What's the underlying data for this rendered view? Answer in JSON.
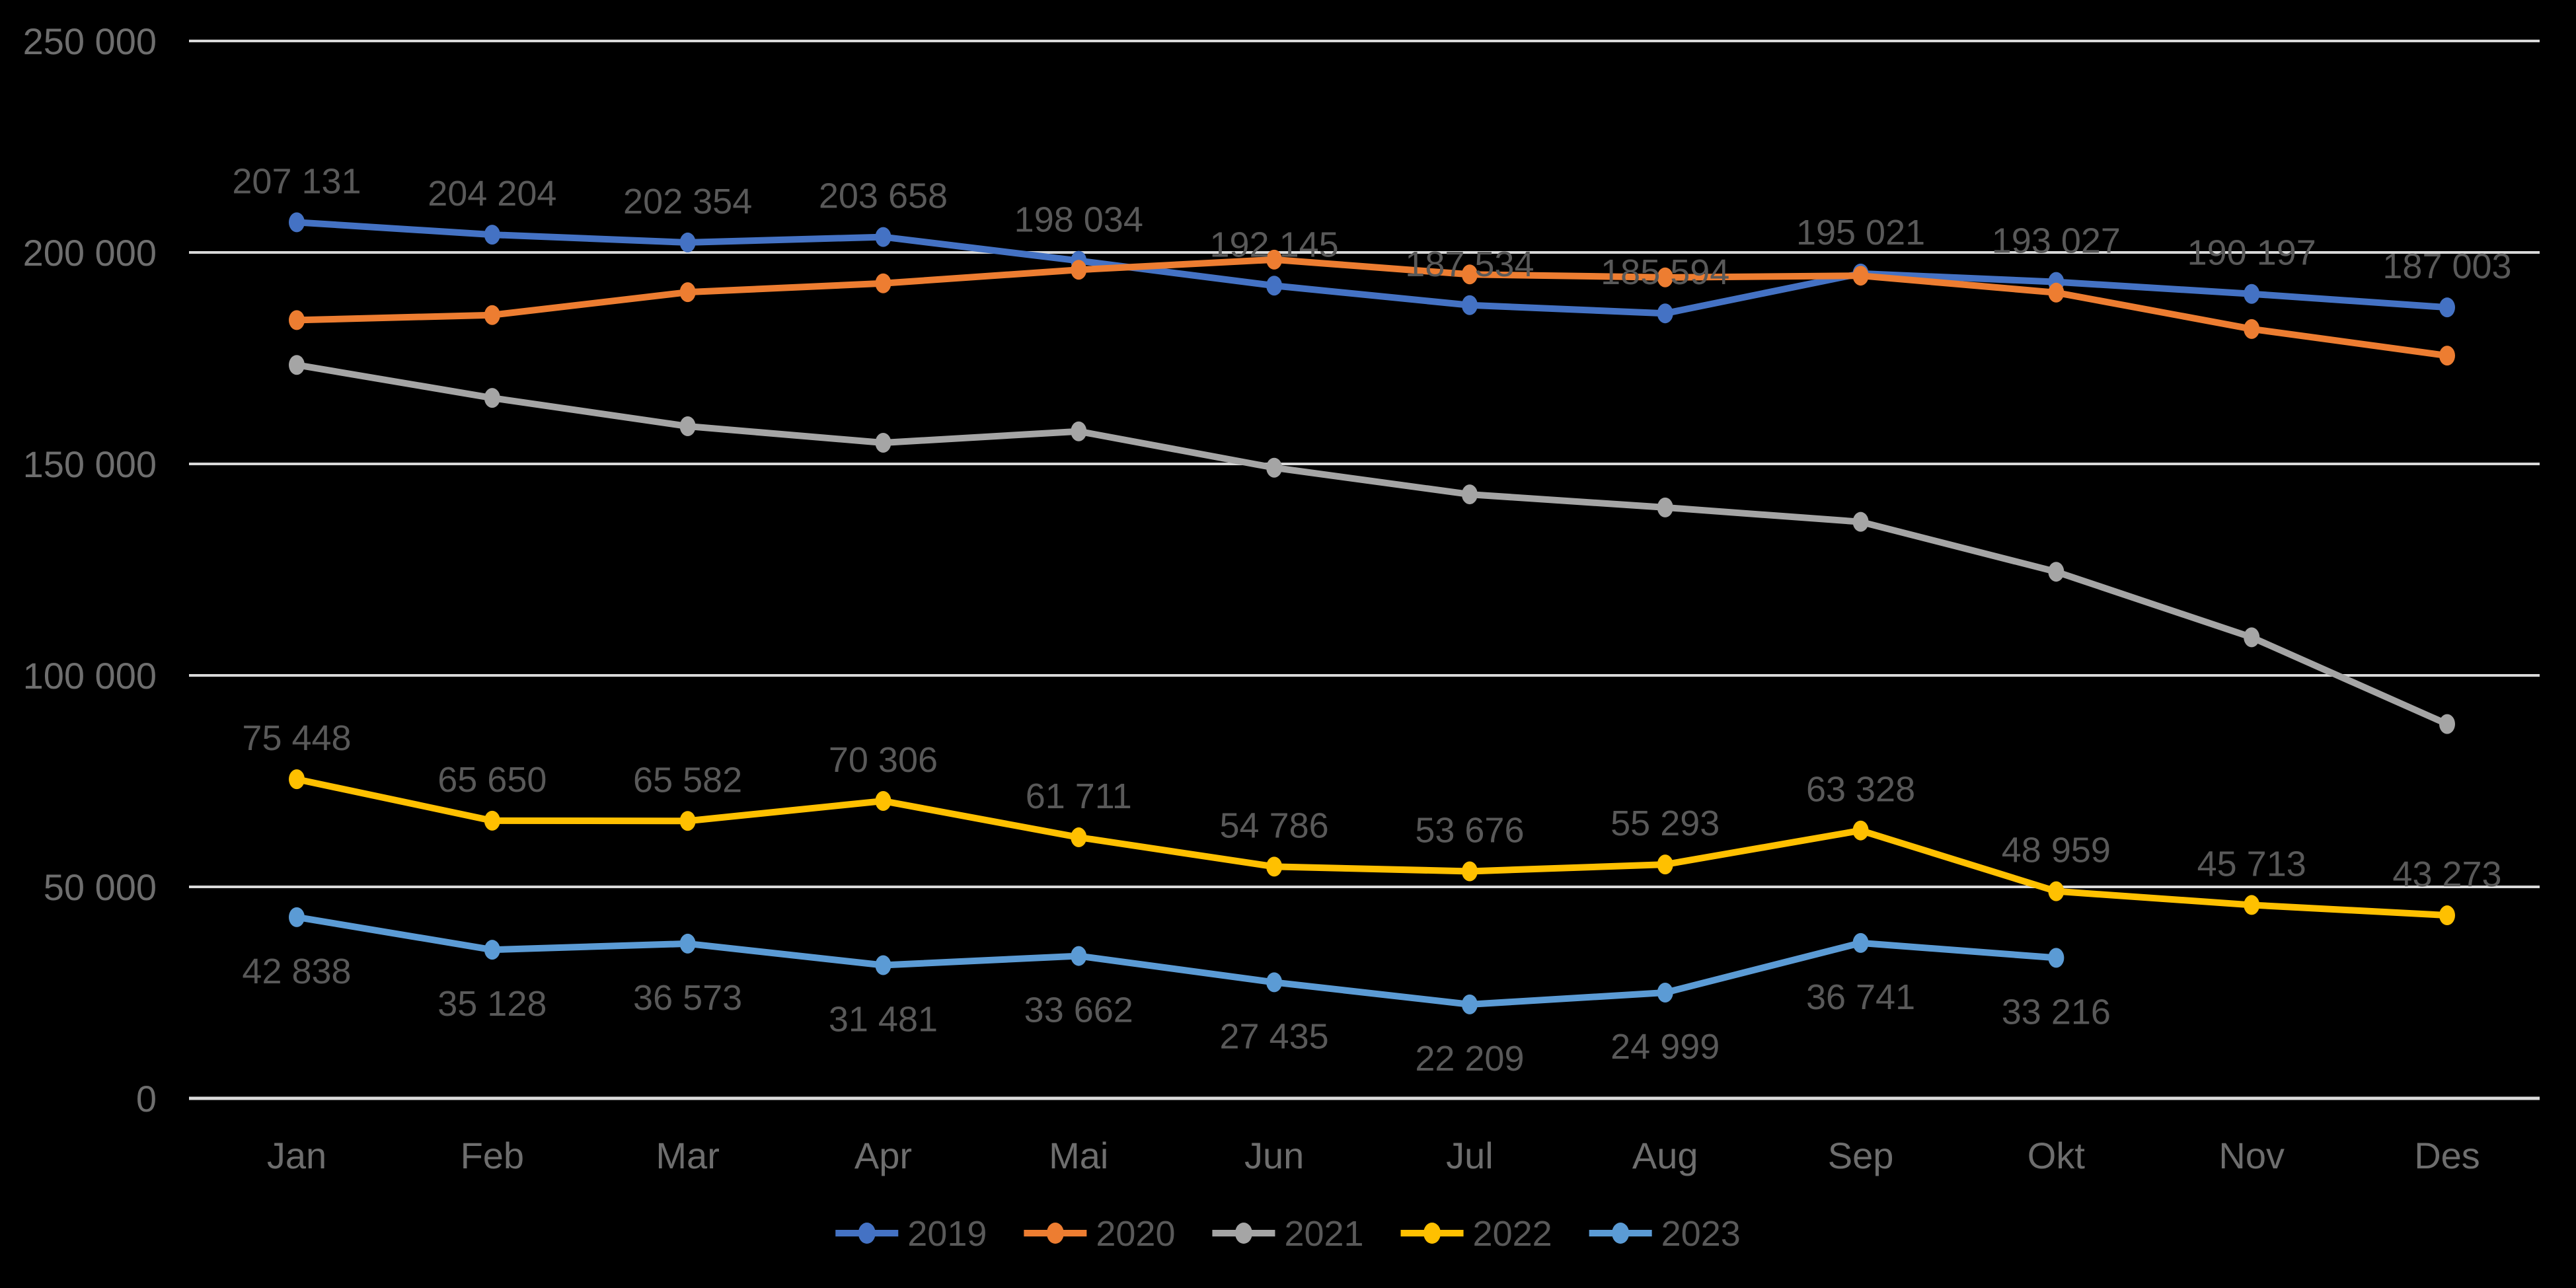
{
  "chart_data": {
    "type": "line",
    "title": "",
    "xlabel": "",
    "ylabel": "",
    "background_color": "#000000",
    "gridline_color": "#D9D9D9",
    "grid": true,
    "axis_label_color": "#6E6E6E",
    "data_label_color": "#595959",
    "legend_text_color": "#595959",
    "legend_position": "bottom",
    "categories": [
      "Jan",
      "Feb",
      "Mar",
      "Apr",
      "Mai",
      "Jun",
      "Jul",
      "Aug",
      "Sep",
      "Okt",
      "Nov",
      "Des"
    ],
    "y_axis": {
      "min": 0,
      "max": 250000,
      "step": 50000,
      "tick_labels": [
        "250 000",
        "200 000",
        "150 000",
        "100 000",
        "50 000",
        "0"
      ]
    },
    "series": [
      {
        "name": "2019",
        "color": "#4472C4",
        "label_position": "above",
        "values": [
          207131,
          204204,
          202354,
          203658,
          198034,
          192145,
          187534,
          185594,
          195021,
          193027,
          190197,
          187003
        ],
        "labels": [
          "207 131",
          "204 204",
          "202 354",
          "203 658",
          "198 034",
          "192 145",
          "187 534",
          "185 594",
          "195 021",
          "193 027",
          "190 197",
          "187 003"
        ]
      },
      {
        "name": "2020",
        "color": "#ED7D31",
        "label_position": "none",
        "values_estimated": true,
        "values": [
          184000,
          185200,
          190600,
          192700,
          195900,
          198300,
          194800,
          194100,
          194500,
          190500,
          181900,
          175600
        ],
        "labels": null
      },
      {
        "name": "2021",
        "color": "#A5A5A5",
        "label_position": "none",
        "values_estimated": true,
        "values": [
          173400,
          165600,
          158900,
          155000,
          157700,
          149100,
          142800,
          139700,
          136300,
          124500,
          109000,
          88500
        ],
        "labels": null
      },
      {
        "name": "2022",
        "color": "#FFC000",
        "label_position": "above",
        "values": [
          75448,
          65650,
          65582,
          70306,
          61711,
          54786,
          53676,
          55293,
          63328,
          48959,
          45713,
          43273
        ],
        "labels": [
          "75 448",
          "65 650",
          "65 582",
          "70 306",
          "61 711",
          "54 786",
          "53 676",
          "55 293",
          "63 328",
          "48 959",
          "45 713",
          "43 273"
        ]
      },
      {
        "name": "2023",
        "color": "#5B9BD5",
        "label_position": "below",
        "values": [
          42838,
          35128,
          36573,
          31481,
          33662,
          27435,
          22209,
          24999,
          36741,
          33216
        ],
        "labels": [
          "42 838",
          "35 128",
          "36 573",
          "31 481",
          "33 662",
          "27 435",
          "22 209",
          "24 999",
          "36 741",
          "33 216"
        ]
      }
    ],
    "legend": [
      "2019",
      "2020",
      "2021",
      "2022",
      "2023"
    ]
  }
}
